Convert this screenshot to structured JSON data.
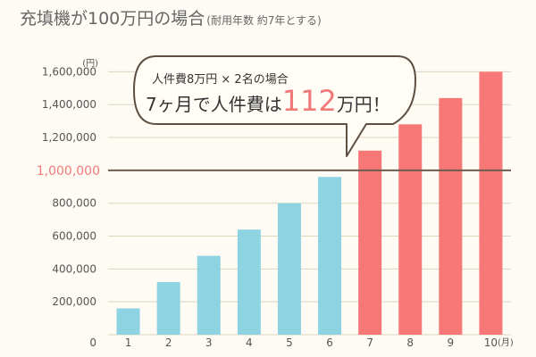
{
  "header": {
    "title": "充填機が100万円の場合",
    "subtitle": "(耐用年数 約7年とする)"
  },
  "callout": {
    "line1": "人件費8万円 × 2名の場合",
    "line2_before": "7ヶ月で人件費は",
    "line2_highlight": "112",
    "line2_after": "万円！"
  },
  "colors": {
    "bar_normal": "#8dd3e2",
    "bar_highlight": "#f87878",
    "threshold_line": "#6b5c4f",
    "threshold_label": "#f07a7a",
    "grid": "#ddd4bf"
  },
  "chart_data": {
    "type": "bar",
    "title": "充填機が100万円の場合",
    "y_unit": "(円)",
    "x_unit": "(月)",
    "x_origin_label": "0",
    "categories": [
      "1",
      "2",
      "3",
      "4",
      "5",
      "6",
      "7",
      "8",
      "9",
      "10"
    ],
    "values": [
      160000,
      320000,
      480000,
      640000,
      800000,
      960000,
      1120000,
      1280000,
      1440000,
      1600000
    ],
    "highlight_from_index": 6,
    "ylim": [
      0,
      1700000
    ],
    "yticks": [
      200000,
      400000,
      600000,
      800000,
      1200000,
      1400000,
      1600000
    ],
    "ytick_labels": [
      "200,000",
      "400,000",
      "600,000",
      "800,000",
      "1,200,000",
      "1,400,000",
      "1,600,000"
    ],
    "threshold": {
      "value": 1000000,
      "label": "1,000,000"
    },
    "grid": true,
    "legend": "none"
  }
}
